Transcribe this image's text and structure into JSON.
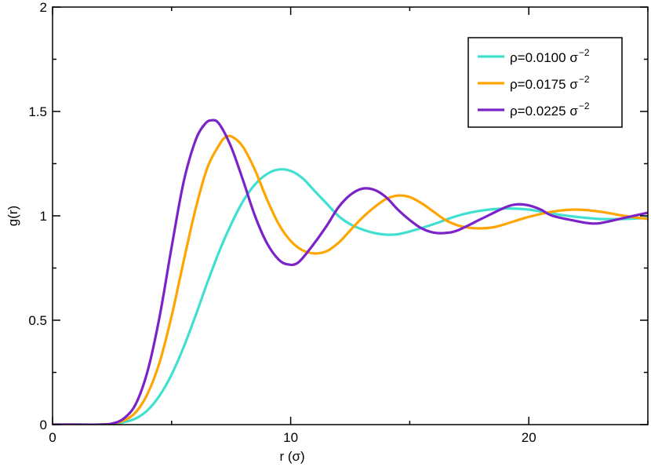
{
  "chart_data": {
    "type": "line",
    "title": "",
    "xlabel": "r  (σ)",
    "ylabel": "g(r)",
    "xlim": [
      0,
      25
    ],
    "ylim": [
      0,
      2
    ],
    "xticks": [
      0,
      10,
      20
    ],
    "yticks": [
      0,
      0.5,
      1,
      1.5,
      2
    ],
    "xtick_labels": [
      "0",
      "10",
      "20"
    ],
    "ytick_labels": [
      "0",
      "0.5",
      "1",
      "1.5",
      "2"
    ],
    "grid": false,
    "legend_position": "top-right",
    "series": [
      {
        "name": "ρ=0.0100 σ",
        "name_superscript": "−2",
        "color": "#40E0D0",
        "points": [
          [
            0,
            0
          ],
          [
            1,
            0
          ],
          [
            2,
            0
          ],
          [
            2.5,
            0.003
          ],
          [
            3,
            0.012
          ],
          [
            3.5,
            0.03
          ],
          [
            4,
            0.07
          ],
          [
            4.5,
            0.14
          ],
          [
            5,
            0.24
          ],
          [
            5.5,
            0.37
          ],
          [
            6,
            0.52
          ],
          [
            6.5,
            0.68
          ],
          [
            7,
            0.83
          ],
          [
            7.5,
            0.96
          ],
          [
            8,
            1.07
          ],
          [
            8.5,
            1.15
          ],
          [
            9,
            1.2
          ],
          [
            9.5,
            1.222
          ],
          [
            10,
            1.215
          ],
          [
            10.5,
            1.18
          ],
          [
            11,
            1.12
          ],
          [
            11.5,
            1.06
          ],
          [
            12,
            1.0
          ],
          [
            12.5,
            0.96
          ],
          [
            13,
            0.935
          ],
          [
            13.5,
            0.918
          ],
          [
            14,
            0.91
          ],
          [
            14.5,
            0.912
          ],
          [
            15,
            0.925
          ],
          [
            16,
            0.96
          ],
          [
            17,
            1.0
          ],
          [
            18,
            1.025
          ],
          [
            19,
            1.035
          ],
          [
            20,
            1.03
          ],
          [
            21,
            1.01
          ],
          [
            22,
            0.995
          ],
          [
            23,
            0.985
          ],
          [
            24,
            0.985
          ],
          [
            25,
            0.99
          ]
        ]
      },
      {
        "name": "ρ=0.0175 σ",
        "name_superscript": "−2",
        "color": "#FFA500",
        "points": [
          [
            0,
            0
          ],
          [
            1,
            0
          ],
          [
            2,
            0
          ],
          [
            2.5,
            0.004
          ],
          [
            3,
            0.02
          ],
          [
            3.5,
            0.06
          ],
          [
            4,
            0.15
          ],
          [
            4.5,
            0.3
          ],
          [
            5,
            0.52
          ],
          [
            5.5,
            0.78
          ],
          [
            6,
            1.03
          ],
          [
            6.5,
            1.23
          ],
          [
            7,
            1.34
          ],
          [
            7.3,
            1.38
          ],
          [
            7.6,
            1.375
          ],
          [
            8,
            1.33
          ],
          [
            8.5,
            1.22
          ],
          [
            9,
            1.08
          ],
          [
            9.5,
            0.96
          ],
          [
            10,
            0.88
          ],
          [
            10.5,
            0.835
          ],
          [
            11,
            0.82
          ],
          [
            11.5,
            0.83
          ],
          [
            12,
            0.87
          ],
          [
            12.5,
            0.93
          ],
          [
            13,
            0.99
          ],
          [
            13.5,
            1.04
          ],
          [
            14,
            1.08
          ],
          [
            14.5,
            1.097
          ],
          [
            15,
            1.09
          ],
          [
            15.5,
            1.06
          ],
          [
            16,
            1.02
          ],
          [
            16.5,
            0.98
          ],
          [
            17,
            0.955
          ],
          [
            17.5,
            0.943
          ],
          [
            18,
            0.94
          ],
          [
            18.5,
            0.945
          ],
          [
            19,
            0.96
          ],
          [
            20,
            0.995
          ],
          [
            21,
            1.02
          ],
          [
            22,
            1.03
          ],
          [
            23,
            1.02
          ],
          [
            24,
            1.0
          ],
          [
            25,
            0.985
          ]
        ]
      },
      {
        "name": "ρ=0.0225 σ",
        "name_superscript": "−2",
        "color": "#7B22C9",
        "points": [
          [
            0,
            0
          ],
          [
            1,
            0
          ],
          [
            2,
            0
          ],
          [
            2.5,
            0.005
          ],
          [
            3,
            0.03
          ],
          [
            3.5,
            0.1
          ],
          [
            4,
            0.26
          ],
          [
            4.5,
            0.52
          ],
          [
            5,
            0.85
          ],
          [
            5.5,
            1.16
          ],
          [
            6,
            1.36
          ],
          [
            6.4,
            1.44
          ],
          [
            6.7,
            1.458
          ],
          [
            7,
            1.44
          ],
          [
            7.5,
            1.33
          ],
          [
            8,
            1.17
          ],
          [
            8.5,
            1.0
          ],
          [
            9,
            0.87
          ],
          [
            9.5,
            0.79
          ],
          [
            9.9,
            0.767
          ],
          [
            10.3,
            0.775
          ],
          [
            10.8,
            0.84
          ],
          [
            11.5,
            0.95
          ],
          [
            12,
            1.04
          ],
          [
            12.5,
            1.1
          ],
          [
            13,
            1.13
          ],
          [
            13.5,
            1.125
          ],
          [
            14,
            1.09
          ],
          [
            14.5,
            1.03
          ],
          [
            15,
            0.98
          ],
          [
            15.5,
            0.94
          ],
          [
            16,
            0.92
          ],
          [
            16.5,
            0.918
          ],
          [
            17,
            0.93
          ],
          [
            18,
            0.985
          ],
          [
            19,
            1.04
          ],
          [
            19.5,
            1.055
          ],
          [
            20,
            1.05
          ],
          [
            20.5,
            1.03
          ],
          [
            21,
            1.0
          ],
          [
            22,
            0.975
          ],
          [
            22.5,
            0.965
          ],
          [
            23,
            0.965
          ],
          [
            24,
            0.99
          ],
          [
            25,
            1.015
          ]
        ]
      }
    ]
  }
}
